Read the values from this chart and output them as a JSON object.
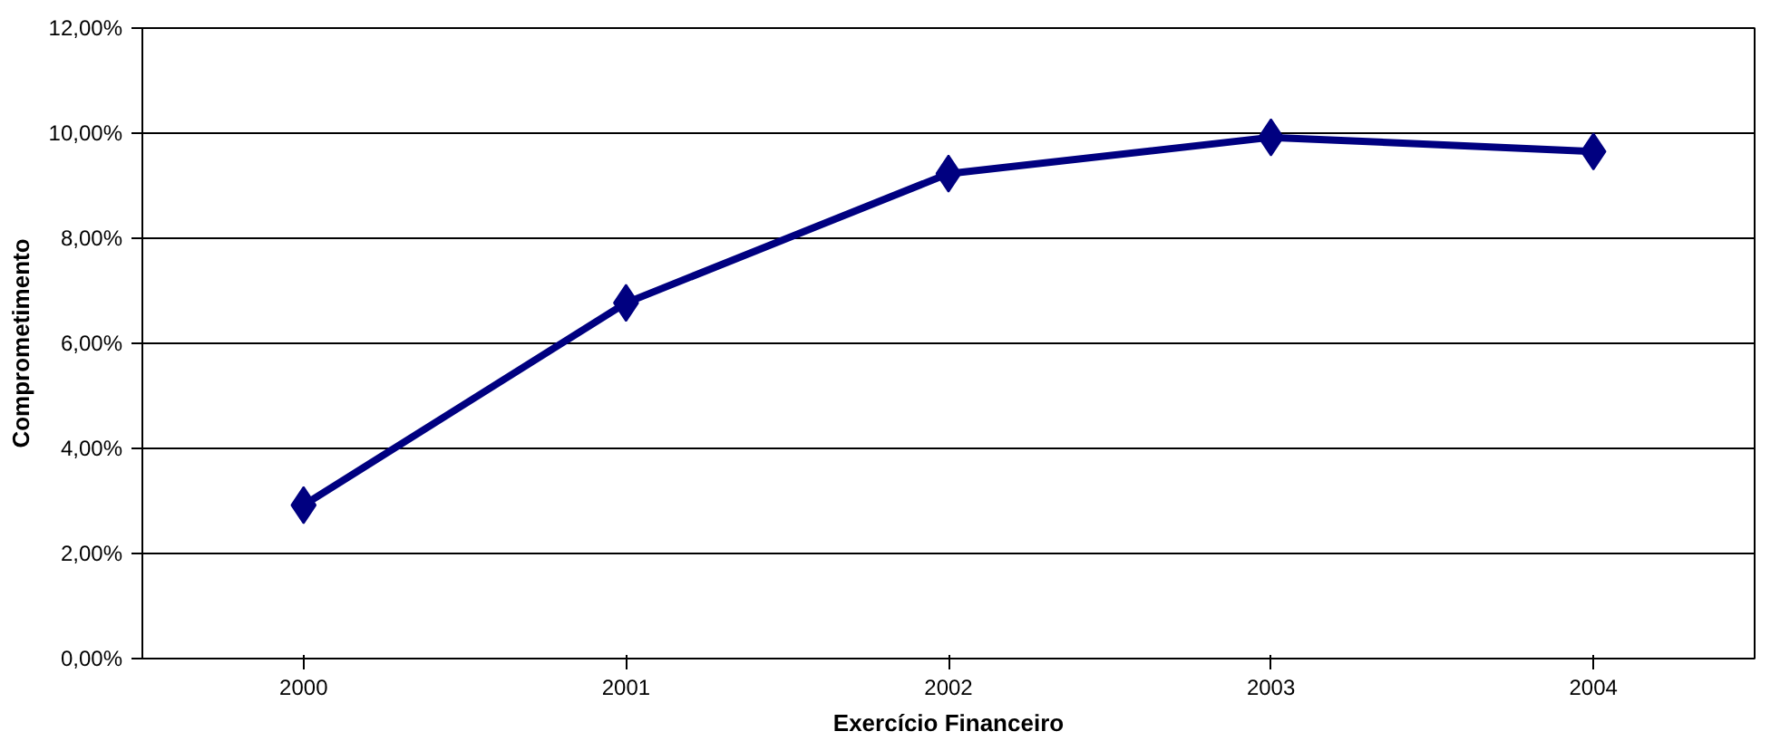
{
  "chart_data": {
    "type": "line",
    "xlabel": "Exercício Financeiro",
    "ylabel": "Comprometimento",
    "categories": [
      "2000",
      "2001",
      "2002",
      "2003",
      "2004"
    ],
    "series": [
      {
        "color": "#000080",
        "values": [
          2.92,
          6.77,
          9.23,
          9.92,
          9.65
        ]
      }
    ],
    "ylim": [
      0,
      12
    ],
    "yticks": [
      {
        "value": 0,
        "label": "0,00%"
      },
      {
        "value": 2,
        "label": "2,00%"
      },
      {
        "value": 4,
        "label": "4,00%"
      },
      {
        "value": 6,
        "label": "6,00%"
      },
      {
        "value": 8,
        "label": "8,00%"
      },
      {
        "value": 10,
        "label": "10,00%"
      },
      {
        "value": 12,
        "label": "12,00%"
      }
    ],
    "grid": "y",
    "marker": "diamond",
    "line_style": "solid"
  }
}
